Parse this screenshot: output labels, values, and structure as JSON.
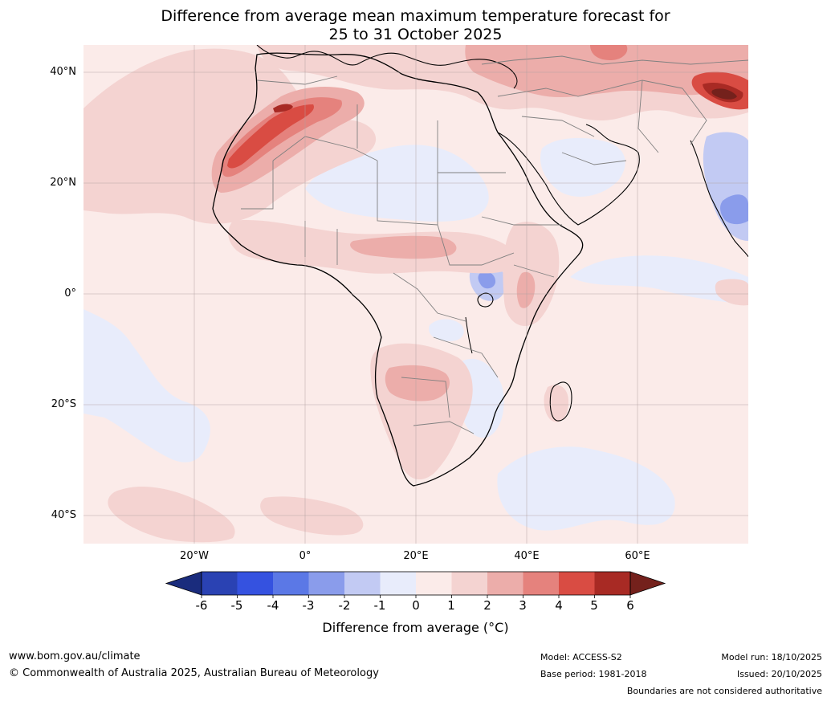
{
  "title": {
    "line1": "Difference from average mean maximum temperature forecast for",
    "line2": "25 to 31 October 2025"
  },
  "map": {
    "latitude_labels": [
      "40°N",
      "20°N",
      "0°",
      "20°S",
      "40°S"
    ],
    "longitude_labels": [
      "20°W",
      "0°",
      "20°E",
      "40°E",
      "60°E"
    ],
    "lat_values": [
      40,
      20,
      0,
      -20,
      -40
    ],
    "lon_values": [
      -20,
      0,
      20,
      40,
      60
    ],
    "extent": {
      "lon_min": -40,
      "lon_max": 80,
      "lat_min": -45,
      "lat_max": 45
    }
  },
  "colorbar": {
    "ticks": [
      "-6",
      "-5",
      "-4",
      "-3",
      "-2",
      "-1",
      "0",
      "1",
      "2",
      "3",
      "4",
      "5",
      "6"
    ],
    "colors": [
      "#1a2c7d",
      "#2a42b3",
      "#3552e0",
      "#5b78e6",
      "#8a9ceb",
      "#c2caf3",
      "#e8ecfb",
      "#fbebe9",
      "#f4d3d1",
      "#ecadaa",
      "#e5827d",
      "#d94c43",
      "#a82a24",
      "#74211c"
    ],
    "title": "Difference from average (°C)"
  },
  "footer": {
    "website": "www.bom.gov.au/climate",
    "copyright": "© Commonwealth of Australia 2025, Australian Bureau of Meteorology",
    "model": "Model: ACCESS-S2",
    "base_period": "Base period: 1981-2018",
    "model_run": "Model run: 18/10/2025",
    "issued": "Issued: 20/10/2025",
    "disclaimer": "Boundaries are not considered authoritative"
  }
}
